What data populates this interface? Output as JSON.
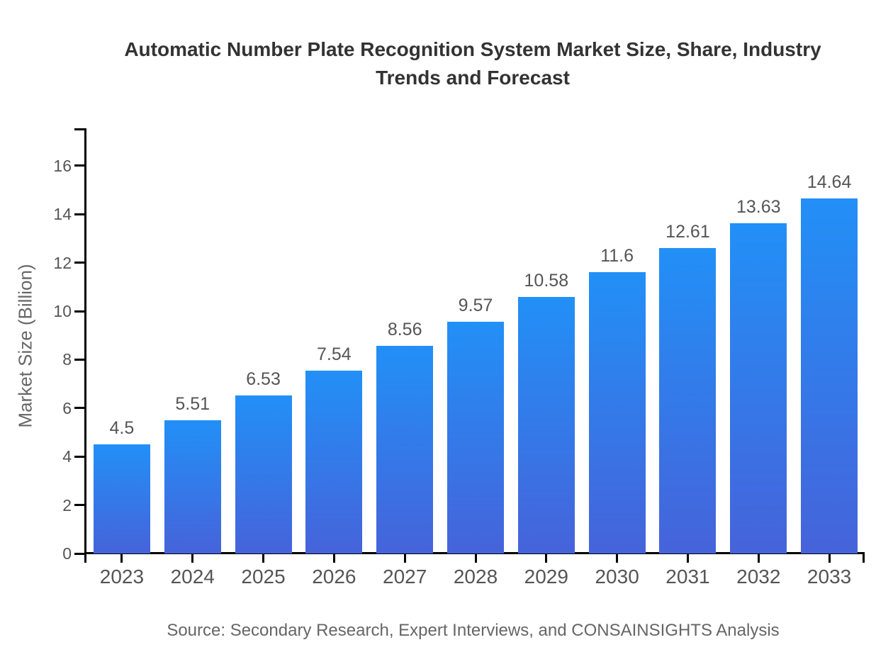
{
  "title": "Automatic Number Plate Recognition System Market Size, Share, Industry Trends and Forecast",
  "source_note": "Source: Secondary Research, Expert Interviews, and CONSAINSIGHTS Analysis",
  "chart_data": {
    "type": "bar",
    "title": "Automatic Number Plate Recognition System Market Size, Share, Industry Trends and Forecast",
    "categories": [
      "2023",
      "2024",
      "2025",
      "2026",
      "2027",
      "2028",
      "2029",
      "2030",
      "2031",
      "2032",
      "2033"
    ],
    "values": [
      4.5,
      5.51,
      6.53,
      7.54,
      8.56,
      9.57,
      10.58,
      11.6,
      12.61,
      13.63,
      14.64
    ],
    "value_labels": [
      "4.5",
      "5.51",
      "6.53",
      "7.54",
      "8.56",
      "9.57",
      "10.58",
      "11.6",
      "12.61",
      "13.63",
      "14.64"
    ],
    "xlabel": "",
    "ylabel": "Market Size (Billion)",
    "ylim": [
      0,
      17.55
    ],
    "yticks": [
      0,
      2,
      4,
      6,
      8,
      10,
      12,
      14,
      16
    ],
    "grid": false,
    "legend": "none",
    "colors": {
      "bar_gradient_top": "#2290f7",
      "bar_gradient_bottom": "#4663da",
      "axis": "#000000",
      "tick_label": "#555555",
      "value_label": "#555555",
      "title": "#333333",
      "axis_title": "#666666",
      "source": "#666666",
      "background": "#ffffff"
    }
  }
}
